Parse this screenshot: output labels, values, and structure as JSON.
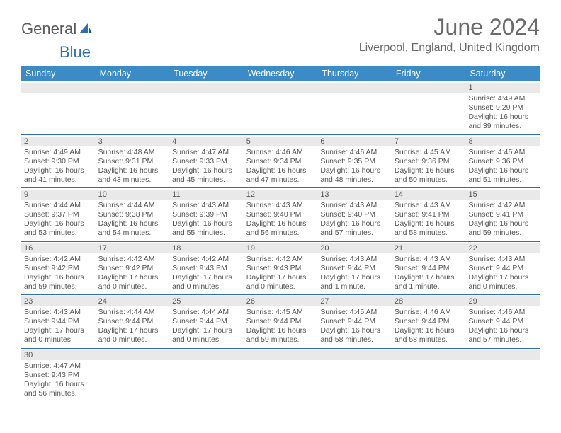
{
  "brand": {
    "word1": "General",
    "word2": "Blue"
  },
  "title": "June 2024",
  "location": "Liverpool, England, United Kingdom",
  "colors": {
    "header_bg": "#3b8bc6",
    "header_text": "#ffffff",
    "cell_border": "#2f6fb0",
    "daynum_bg": "#e9e9e9",
    "text": "#555555",
    "title_text": "#6b6b6b",
    "logo_gray": "#5a5a5a",
    "logo_blue": "#2f6fb0"
  },
  "dayNames": [
    "Sunday",
    "Monday",
    "Tuesday",
    "Wednesday",
    "Thursday",
    "Friday",
    "Saturday"
  ],
  "weeks": [
    [
      null,
      null,
      null,
      null,
      null,
      null,
      {
        "n": "1",
        "sr": "Sunrise: 4:49 AM",
        "ss": "Sunset: 9:29 PM",
        "d1": "Daylight: 16 hours",
        "d2": "and 39 minutes."
      }
    ],
    [
      {
        "n": "2",
        "sr": "Sunrise: 4:49 AM",
        "ss": "Sunset: 9:30 PM",
        "d1": "Daylight: 16 hours",
        "d2": "and 41 minutes."
      },
      {
        "n": "3",
        "sr": "Sunrise: 4:48 AM",
        "ss": "Sunset: 9:31 PM",
        "d1": "Daylight: 16 hours",
        "d2": "and 43 minutes."
      },
      {
        "n": "4",
        "sr": "Sunrise: 4:47 AM",
        "ss": "Sunset: 9:33 PM",
        "d1": "Daylight: 16 hours",
        "d2": "and 45 minutes."
      },
      {
        "n": "5",
        "sr": "Sunrise: 4:46 AM",
        "ss": "Sunset: 9:34 PM",
        "d1": "Daylight: 16 hours",
        "d2": "and 47 minutes."
      },
      {
        "n": "6",
        "sr": "Sunrise: 4:46 AM",
        "ss": "Sunset: 9:35 PM",
        "d1": "Daylight: 16 hours",
        "d2": "and 48 minutes."
      },
      {
        "n": "7",
        "sr": "Sunrise: 4:45 AM",
        "ss": "Sunset: 9:36 PM",
        "d1": "Daylight: 16 hours",
        "d2": "and 50 minutes."
      },
      {
        "n": "8",
        "sr": "Sunrise: 4:45 AM",
        "ss": "Sunset: 9:36 PM",
        "d1": "Daylight: 16 hours",
        "d2": "and 51 minutes."
      }
    ],
    [
      {
        "n": "9",
        "sr": "Sunrise: 4:44 AM",
        "ss": "Sunset: 9:37 PM",
        "d1": "Daylight: 16 hours",
        "d2": "and 53 minutes."
      },
      {
        "n": "10",
        "sr": "Sunrise: 4:44 AM",
        "ss": "Sunset: 9:38 PM",
        "d1": "Daylight: 16 hours",
        "d2": "and 54 minutes."
      },
      {
        "n": "11",
        "sr": "Sunrise: 4:43 AM",
        "ss": "Sunset: 9:39 PM",
        "d1": "Daylight: 16 hours",
        "d2": "and 55 minutes."
      },
      {
        "n": "12",
        "sr": "Sunrise: 4:43 AM",
        "ss": "Sunset: 9:40 PM",
        "d1": "Daylight: 16 hours",
        "d2": "and 56 minutes."
      },
      {
        "n": "13",
        "sr": "Sunrise: 4:43 AM",
        "ss": "Sunset: 9:40 PM",
        "d1": "Daylight: 16 hours",
        "d2": "and 57 minutes."
      },
      {
        "n": "14",
        "sr": "Sunrise: 4:43 AM",
        "ss": "Sunset: 9:41 PM",
        "d1": "Daylight: 16 hours",
        "d2": "and 58 minutes."
      },
      {
        "n": "15",
        "sr": "Sunrise: 4:42 AM",
        "ss": "Sunset: 9:41 PM",
        "d1": "Daylight: 16 hours",
        "d2": "and 59 minutes."
      }
    ],
    [
      {
        "n": "16",
        "sr": "Sunrise: 4:42 AM",
        "ss": "Sunset: 9:42 PM",
        "d1": "Daylight: 16 hours",
        "d2": "and 59 minutes."
      },
      {
        "n": "17",
        "sr": "Sunrise: 4:42 AM",
        "ss": "Sunset: 9:42 PM",
        "d1": "Daylight: 17 hours",
        "d2": "and 0 minutes."
      },
      {
        "n": "18",
        "sr": "Sunrise: 4:42 AM",
        "ss": "Sunset: 9:43 PM",
        "d1": "Daylight: 17 hours",
        "d2": "and 0 minutes."
      },
      {
        "n": "19",
        "sr": "Sunrise: 4:42 AM",
        "ss": "Sunset: 9:43 PM",
        "d1": "Daylight: 17 hours",
        "d2": "and 0 minutes."
      },
      {
        "n": "20",
        "sr": "Sunrise: 4:43 AM",
        "ss": "Sunset: 9:44 PM",
        "d1": "Daylight: 17 hours",
        "d2": "and 1 minute."
      },
      {
        "n": "21",
        "sr": "Sunrise: 4:43 AM",
        "ss": "Sunset: 9:44 PM",
        "d1": "Daylight: 17 hours",
        "d2": "and 1 minute."
      },
      {
        "n": "22",
        "sr": "Sunrise: 4:43 AM",
        "ss": "Sunset: 9:44 PM",
        "d1": "Daylight: 17 hours",
        "d2": "and 0 minutes."
      }
    ],
    [
      {
        "n": "23",
        "sr": "Sunrise: 4:43 AM",
        "ss": "Sunset: 9:44 PM",
        "d1": "Daylight: 17 hours",
        "d2": "and 0 minutes."
      },
      {
        "n": "24",
        "sr": "Sunrise: 4:44 AM",
        "ss": "Sunset: 9:44 PM",
        "d1": "Daylight: 17 hours",
        "d2": "and 0 minutes."
      },
      {
        "n": "25",
        "sr": "Sunrise: 4:44 AM",
        "ss": "Sunset: 9:44 PM",
        "d1": "Daylight: 17 hours",
        "d2": "and 0 minutes."
      },
      {
        "n": "26",
        "sr": "Sunrise: 4:45 AM",
        "ss": "Sunset: 9:44 PM",
        "d1": "Daylight: 16 hours",
        "d2": "and 59 minutes."
      },
      {
        "n": "27",
        "sr": "Sunrise: 4:45 AM",
        "ss": "Sunset: 9:44 PM",
        "d1": "Daylight: 16 hours",
        "d2": "and 58 minutes."
      },
      {
        "n": "28",
        "sr": "Sunrise: 4:46 AM",
        "ss": "Sunset: 9:44 PM",
        "d1": "Daylight: 16 hours",
        "d2": "and 58 minutes."
      },
      {
        "n": "29",
        "sr": "Sunrise: 4:46 AM",
        "ss": "Sunset: 9:44 PM",
        "d1": "Daylight: 16 hours",
        "d2": "and 57 minutes."
      }
    ],
    [
      {
        "n": "30",
        "sr": "Sunrise: 4:47 AM",
        "ss": "Sunset: 9:43 PM",
        "d1": "Daylight: 16 hours",
        "d2": "and 56 minutes."
      },
      null,
      null,
      null,
      null,
      null,
      null
    ]
  ]
}
